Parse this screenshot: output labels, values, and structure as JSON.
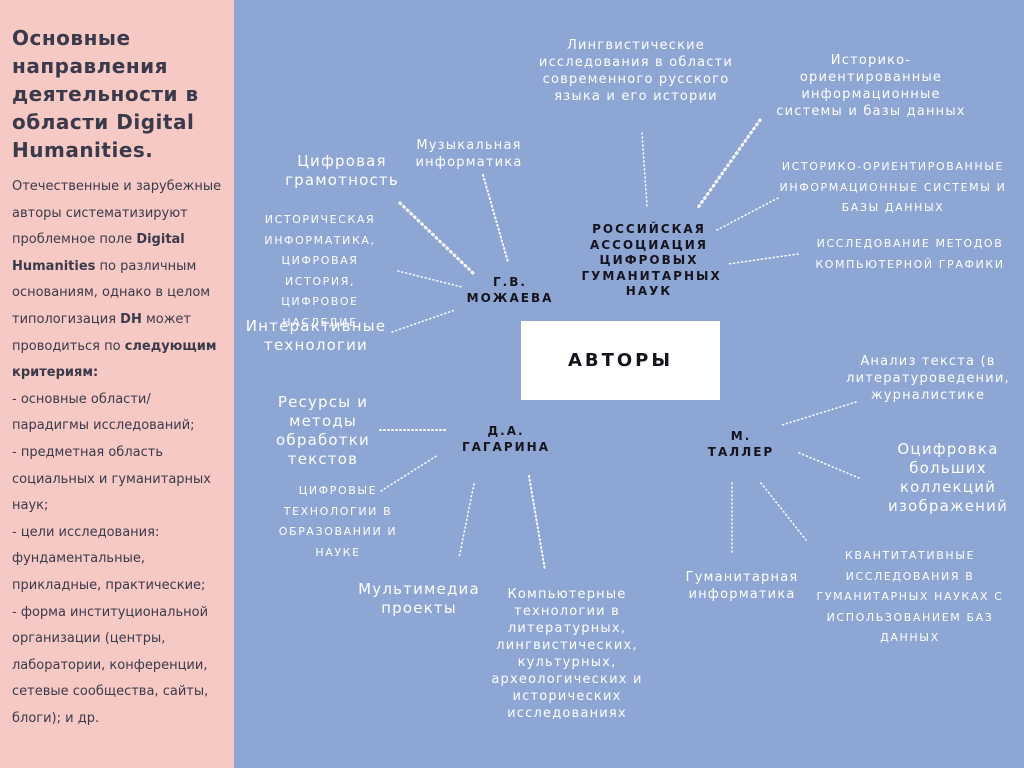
{
  "sidebar": {
    "title": "Основные направления деятельности в области Digital Humanities.",
    "paragraph": [
      {
        "text": "Отечественные и зарубежные авторы систематизируют проблемное поле ",
        "bold": false
      },
      {
        "text": "Digital Humanities",
        "bold": true
      },
      {
        "text": " по различным основаниям, однако в целом типологизация ",
        "bold": false
      },
      {
        "text": "DH",
        "bold": true
      },
      {
        "text": " может проводиться по ",
        "bold": false
      },
      {
        "text": "следующим критериям:",
        "bold": true
      }
    ],
    "criteria": [
      "- основные области/ парадигмы исследований;",
      "- предметная область социальных и гуманитарных наук;",
      "- цели исследования: фундаментальные, прикладные, практические;",
      "- форма институциональной организации (центры, лаборатории, конференции, сетевые сообщества, сайты, блоги); и др."
    ]
  },
  "diagram": {
    "center": "АВТОРЫ",
    "hubs": {
      "mozhaeva": "Г.В. МОЖАЕВА",
      "gagarina": "Д.А. ГАГАРИНА",
      "taller": "М. ТАЛЛЕР",
      "association": "РОССИЙСКАЯ АССОЦИАЦИЯ ЦИФРОВЫХ ГУМАНИТАРНЫХ НАУК"
    },
    "mozhaeva_items": {
      "music": "Музыкальная информатика",
      "literacy": "Цифровая грамотность",
      "history": "историческая информатика, цифровая история, цифровое наследие",
      "interactive": "Интерактивные технологии"
    },
    "gagarina_items": {
      "resources": "Ресурсы и методы обработки текстов",
      "education": "цифровые технологии в образовании и науке",
      "multimedia": "Мультимедиа проекты",
      "computer": "Компьютерные технологии в литературных, лингвистических, культурных, археологических и исторических исследованиях"
    },
    "taller_items": {
      "text_analysis": "Анализ текста (в литературоведении, журналистике",
      "digitization": "Оцифровка больших коллекций изображений",
      "quantitative": "квантитативные исследования в гуманитарных науках с использованием баз данных",
      "humanities_inf": "Гуманитарная информатика"
    },
    "association_items": {
      "linguistic": "Лингвистические исследования в области современного русского языка и его истории",
      "hist_systems": "Историко-ориентированные информационные системы и базы данных",
      "hist_systems_caps": "историко-ориентированные информационные системы и базы данных",
      "graphics": "исследование методов компьютерной графики"
    }
  }
}
